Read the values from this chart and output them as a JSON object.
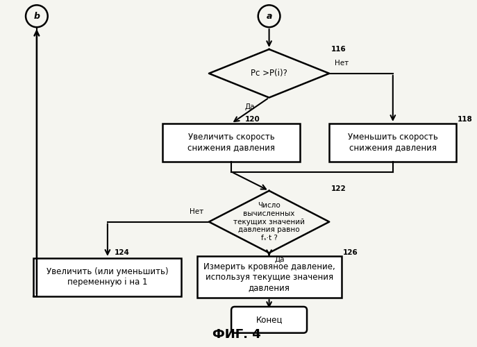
{
  "title": "ФИГ. 4",
  "bg_color": "#f5f5f0",
  "diamond_116_text": "Pс >P(i)?",
  "label_116": "116",
  "box_120_text": "Увеличить скорость\nснижения давления",
  "label_120": "120",
  "box_118_text": "Уменьшить скорость\nснижения давления",
  "label_118": "118",
  "diamond_122_text": "Число\nвычисленных\nтекущих значений\nдавления равно\nfₛ·t ?",
  "label_122": "122",
  "box_124_text": "Увеличить (или уменьшить)\nпеременную i на 1",
  "label_124": "124",
  "box_126_text": "Измерить кровяное давление,\nиспользуя текущие значения\nдавления",
  "label_126": "126",
  "end_text": "Конец",
  "yes_label": "Да",
  "no_label": "Нет"
}
